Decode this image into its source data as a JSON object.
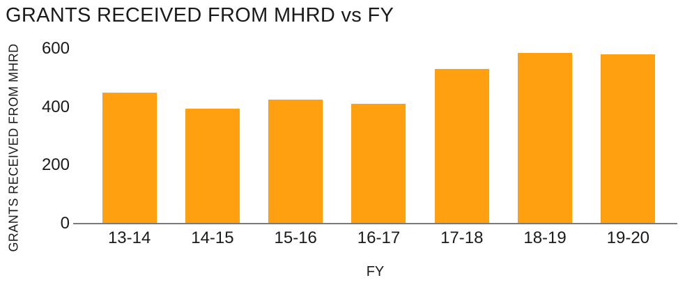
{
  "chart_data": {
    "type": "bar",
    "title": "GRANTS RECEIVED FROM MHRD vs FY",
    "xlabel": "FY",
    "ylabel": "GRANTS RECEIVED FROM MHRD",
    "categories": [
      "13-14",
      "14-15",
      "15-16",
      "16-17",
      "17-18",
      "18-19",
      "19-20"
    ],
    "values": [
      450,
      395,
      425,
      410,
      530,
      585,
      580
    ],
    "ylim": [
      0,
      600
    ],
    "yticks": [
      0,
      200,
      400,
      600
    ],
    "grid": false,
    "legend": "none",
    "bar_color": "#ffa010",
    "axis_line_color": "#7a7a7a",
    "text_color": "#1a1a1a",
    "background_color": "#ffffff"
  }
}
